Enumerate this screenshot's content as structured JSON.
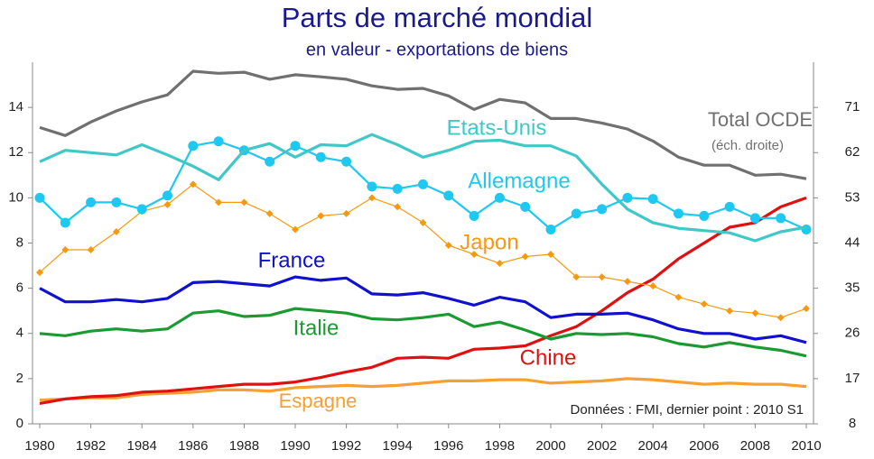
{
  "chart_data": {
    "type": "line",
    "title": "Parts de marché mondial",
    "subtitle": "en valeur - exportations de biens",
    "x": [
      1980,
      1981,
      1982,
      1983,
      1984,
      1985,
      1986,
      1987,
      1988,
      1989,
      1990,
      1991,
      1992,
      1993,
      1994,
      1995,
      1996,
      1997,
      1998,
      1999,
      2000,
      2001,
      2002,
      2003,
      2004,
      2005,
      2006,
      2007,
      2008,
      2009,
      2010
    ],
    "xlim": [
      1980,
      2010
    ],
    "xticks": [
      1980,
      1982,
      1984,
      1986,
      1988,
      1990,
      1992,
      1994,
      1996,
      1998,
      2000,
      2002,
      2004,
      2006,
      2008,
      2010
    ],
    "ylim": [
      0,
      16
    ],
    "yticks": [
      0,
      2,
      4,
      6,
      8,
      10,
      12,
      14
    ],
    "y2lim": [
      8,
      80
    ],
    "y2ticks": [
      8,
      17,
      26,
      35,
      44,
      53,
      62,
      71
    ],
    "series": [
      {
        "name": "Total OCDE",
        "color": "#707070",
        "axis": "y2",
        "marker": "none",
        "values": [
          67.0,
          65.4,
          68.1,
          70.3,
          72.1,
          73.5,
          78.2,
          77.8,
          78.0,
          76.6,
          77.5,
          77.1,
          76.6,
          75.3,
          74.6,
          74.8,
          73.3,
          70.6,
          72.6,
          71.9,
          68.8,
          68.8,
          67.9,
          66.7,
          64.3,
          61.1,
          59.5,
          59.5,
          57.5,
          57.7,
          56.8
        ]
      },
      {
        "name": "Etats-Unis",
        "color": "#40c8c8",
        "marker": "none",
        "values": [
          11.6,
          12.1,
          12.0,
          11.9,
          12.35,
          11.9,
          11.4,
          10.8,
          12.1,
          12.4,
          11.8,
          12.35,
          12.3,
          12.8,
          12.35,
          11.8,
          12.1,
          12.5,
          12.55,
          12.3,
          12.3,
          11.85,
          10.6,
          9.5,
          8.9,
          8.65,
          8.55,
          8.45,
          8.1,
          8.5,
          8.7
        ]
      },
      {
        "name": "Allemagne",
        "color": "#1ec8f0",
        "marker": "circle",
        "values": [
          10.0,
          8.9,
          9.8,
          9.8,
          9.5,
          10.1,
          12.3,
          12.5,
          12.1,
          11.6,
          12.3,
          11.8,
          11.6,
          10.5,
          10.4,
          10.6,
          10.1,
          9.2,
          10.0,
          9.6,
          8.6,
          9.3,
          9.5,
          10.0,
          9.95,
          9.3,
          9.2,
          9.6,
          9.1,
          9.1,
          8.6
        ]
      },
      {
        "name": "Japon",
        "color": "#f59a10",
        "marker": "diamond",
        "values": [
          6.7,
          7.7,
          7.7,
          8.5,
          9.4,
          9.7,
          10.6,
          9.8,
          9.8,
          9.3,
          8.6,
          9.2,
          9.3,
          10.0,
          9.6,
          8.9,
          7.9,
          7.5,
          7.1,
          7.4,
          7.5,
          6.5,
          6.5,
          6.3,
          6.1,
          5.6,
          5.3,
          5.0,
          4.9,
          4.7,
          5.1
        ]
      },
      {
        "name": "France",
        "color": "#1010d0",
        "marker": "none",
        "values": [
          6.0,
          5.4,
          5.4,
          5.5,
          5.4,
          5.55,
          6.25,
          6.3,
          6.2,
          6.1,
          6.5,
          6.35,
          6.45,
          5.75,
          5.7,
          5.8,
          5.55,
          5.25,
          5.6,
          5.4,
          4.7,
          4.85,
          4.85,
          4.9,
          4.6,
          4.2,
          4.0,
          4.0,
          3.75,
          3.9,
          3.6
        ]
      },
      {
        "name": "Italie",
        "color": "#1a9a30",
        "marker": "none",
        "values": [
          4.0,
          3.9,
          4.1,
          4.2,
          4.1,
          4.2,
          4.9,
          5.0,
          4.75,
          4.8,
          5.1,
          5.0,
          4.9,
          4.65,
          4.6,
          4.7,
          4.85,
          4.3,
          4.5,
          4.15,
          3.75,
          4.0,
          3.95,
          4.0,
          3.85,
          3.55,
          3.4,
          3.6,
          3.4,
          3.25,
          3.0
        ]
      },
      {
        "name": "Chine",
        "color": "#e01010",
        "marker": "none",
        "values": [
          0.9,
          1.1,
          1.2,
          1.25,
          1.4,
          1.45,
          1.55,
          1.65,
          1.75,
          1.75,
          1.85,
          2.05,
          2.3,
          2.5,
          2.9,
          2.95,
          2.9,
          3.3,
          3.35,
          3.45,
          3.9,
          4.3,
          5.0,
          5.8,
          6.4,
          7.3,
          8.0,
          8.7,
          8.9,
          9.6,
          10.0
        ]
      },
      {
        "name": "Espagne",
        "color": "#f5a030",
        "marker": "none",
        "values": [
          1.05,
          1.1,
          1.15,
          1.15,
          1.3,
          1.35,
          1.4,
          1.5,
          1.5,
          1.45,
          1.6,
          1.65,
          1.7,
          1.65,
          1.7,
          1.8,
          1.9,
          1.9,
          1.95,
          1.95,
          1.8,
          1.85,
          1.9,
          2.0,
          1.95,
          1.85,
          1.75,
          1.8,
          1.75,
          1.75,
          1.65
        ]
      }
    ],
    "annotations": [
      "(éch. droite)",
      "Données : FMI, dernier point : 2010 S1"
    ]
  }
}
